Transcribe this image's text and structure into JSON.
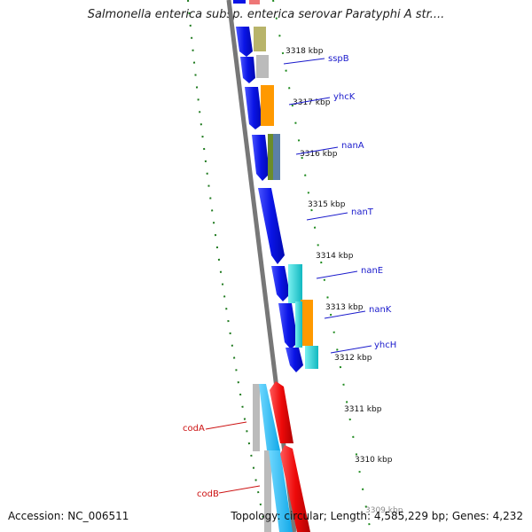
{
  "title": "Salmonella enterica subsp. enterica serovar Paratyphi A str....",
  "footer": {
    "accession": "Accession: NC_006511",
    "summary": "Topology: circular; Length: 4,585,229 bp; Genes: 4,232"
  },
  "ticks": [
    {
      "label": "3318 kbp"
    },
    {
      "label": "3317 kbp"
    },
    {
      "label": "3316 kbp"
    },
    {
      "label": "3315 kbp"
    },
    {
      "label": "3314 kbp"
    },
    {
      "label": "3313 kbp"
    },
    {
      "label": "3312 kbp"
    },
    {
      "label": "3311 kbp"
    },
    {
      "label": "3310 kbp"
    },
    {
      "label": "3309 kbp"
    }
  ],
  "gene_labels": {
    "forward": [
      "sspB",
      "yhcK",
      "nanA",
      "nanT",
      "nanE",
      "nanK",
      "yhcH"
    ],
    "reverse": [
      "codA",
      "codB"
    ]
  },
  "colors": {
    "forward_label": "#1a1acc",
    "reverse_label": "#cc1111",
    "cds_forward": "#0a14e6",
    "cds_reverse": "#ee0a0a",
    "gc_skew_ticks": "#1f7a1f",
    "backbone": "#777777"
  }
}
